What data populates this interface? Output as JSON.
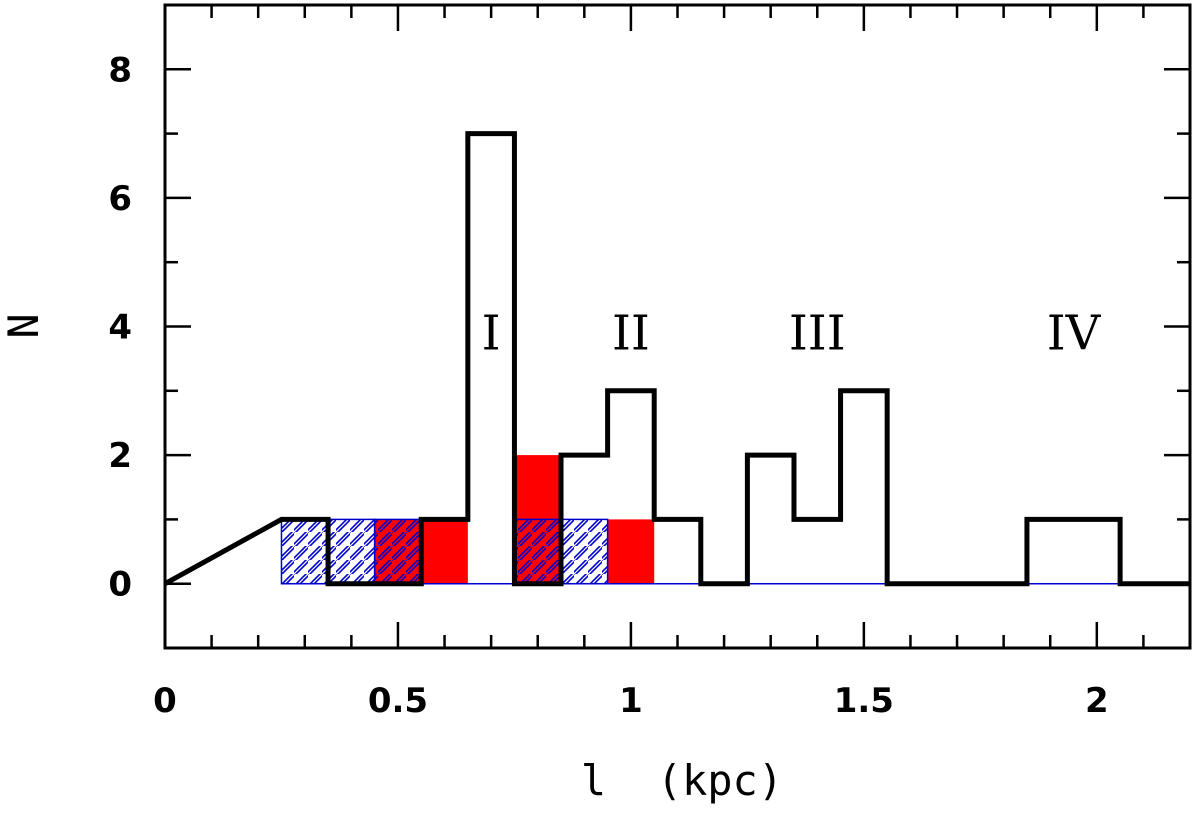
{
  "chart_data": {
    "type": "histogram",
    "title": "",
    "xlabel": "l  (kpc)",
    "ylabel": "N",
    "xlim": [
      0,
      2.2
    ],
    "ylim": [
      -1,
      9
    ],
    "grid": false,
    "bin_width": 0.1,
    "x_ticks": [
      {
        "value": 0,
        "label": "0"
      },
      {
        "value": 0.5,
        "label": "0.5"
      },
      {
        "value": 1,
        "label": "1"
      },
      {
        "value": 1.5,
        "label": "1.5"
      },
      {
        "value": 2,
        "label": "2"
      }
    ],
    "y_ticks": [
      {
        "value": 0,
        "label": "0"
      },
      {
        "value": 2,
        "label": "2"
      },
      {
        "value": 4,
        "label": "4"
      },
      {
        "value": 6,
        "label": "6"
      },
      {
        "value": 8,
        "label": "8"
      }
    ],
    "series": [
      {
        "name": "all",
        "style": "black-outline-step",
        "color": "#000000",
        "bins": [
          {
            "x0": 0.25,
            "x1": 0.35,
            "count": 1
          },
          {
            "x0": 0.35,
            "x1": 0.45,
            "count": 0
          },
          {
            "x0": 0.45,
            "x1": 0.55,
            "count": 0
          },
          {
            "x0": 0.55,
            "x1": 0.65,
            "count": 1
          },
          {
            "x0": 0.65,
            "x1": 0.75,
            "count": 7
          },
          {
            "x0": 0.75,
            "x1": 0.85,
            "count": 0
          },
          {
            "x0": 0.85,
            "x1": 0.95,
            "count": 2
          },
          {
            "x0": 0.95,
            "x1": 1.05,
            "count": 3
          },
          {
            "x0": 1.05,
            "x1": 1.15,
            "count": 1
          },
          {
            "x0": 1.15,
            "x1": 1.25,
            "count": 0
          },
          {
            "x0": 1.25,
            "x1": 1.35,
            "count": 2
          },
          {
            "x0": 1.35,
            "x1": 1.45,
            "count": 1
          },
          {
            "x0": 1.45,
            "x1": 1.55,
            "count": 3
          },
          {
            "x0": 1.55,
            "x1": 1.85,
            "count": 0
          },
          {
            "x0": 1.85,
            "x1": 2.05,
            "count": 1
          }
        ]
      },
      {
        "name": "red-filled",
        "style": "solid-fill",
        "color": "#ff0000",
        "bins": [
          {
            "x0": 0.45,
            "x1": 0.55,
            "count": 1
          },
          {
            "x0": 0.55,
            "x1": 0.65,
            "count": 1
          },
          {
            "x0": 0.75,
            "x1": 0.85,
            "count": 2
          },
          {
            "x0": 0.95,
            "x1": 1.05,
            "count": 1
          }
        ]
      },
      {
        "name": "blue-hatched",
        "style": "diagonal-hatch",
        "color": "#0000cc",
        "bins": [
          {
            "x0": 0.25,
            "x1": 0.35,
            "count": 1
          },
          {
            "x0": 0.35,
            "x1": 0.45,
            "count": 1
          },
          {
            "x0": 0.45,
            "x1": 0.55,
            "count": 1
          },
          {
            "x0": 0.75,
            "x1": 0.85,
            "count": 1
          },
          {
            "x0": 0.85,
            "x1": 0.95,
            "count": 1
          }
        ]
      }
    ],
    "annotations": [
      {
        "text": "I",
        "x": 0.7,
        "y": 4
      },
      {
        "text": "II",
        "x": 1.0,
        "y": 4
      },
      {
        "text": "III",
        "x": 1.4,
        "y": 4
      },
      {
        "text": "IV",
        "x": 1.95,
        "y": 4
      }
    ]
  }
}
